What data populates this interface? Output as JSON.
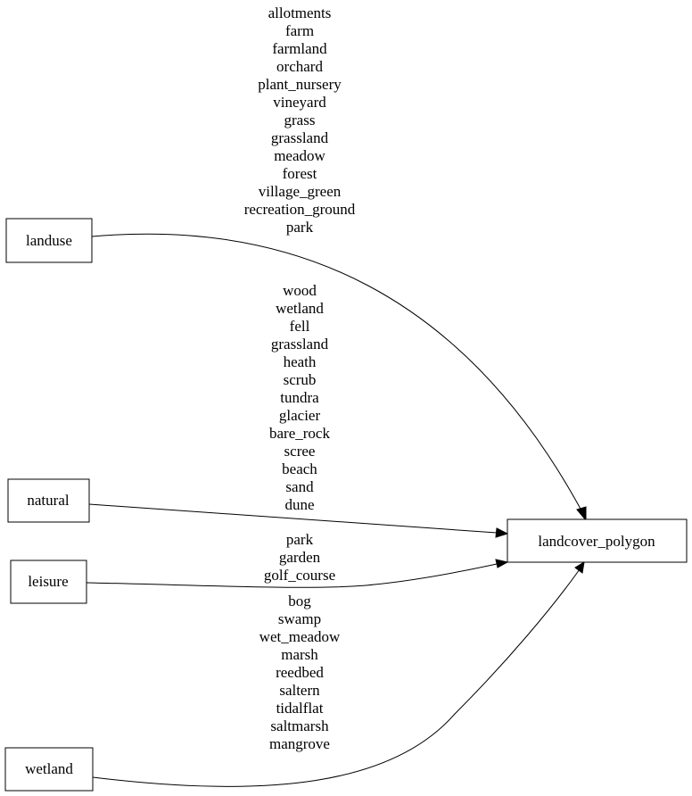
{
  "nodes": {
    "landuse": "landuse",
    "natural": "natural",
    "leisure": "leisure",
    "wetland": "wetland",
    "target": "landcover_polygon"
  },
  "edges": {
    "landuse": [
      "allotments",
      "farm",
      "farmland",
      "orchard",
      "plant_nursery",
      "vineyard",
      "grass",
      "grassland",
      "meadow",
      "forest",
      "village_green",
      "recreation_ground",
      "park"
    ],
    "natural": [
      "wood",
      "wetland",
      "fell",
      "grassland",
      "heath",
      "scrub",
      "tundra",
      "glacier",
      "bare_rock",
      "scree",
      "beach",
      "sand",
      "dune"
    ],
    "leisure": [
      "park",
      "garden",
      "golf_course"
    ],
    "wetland": [
      "bog",
      "swamp",
      "wet_meadow",
      "marsh",
      "reedbed",
      "saltern",
      "tidalflat",
      "saltmarsh",
      "mangrove"
    ]
  }
}
